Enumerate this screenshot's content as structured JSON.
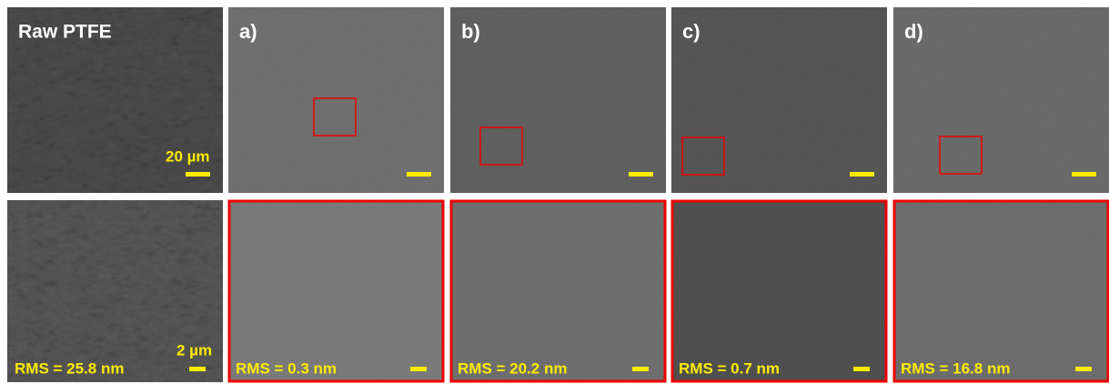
{
  "panels": [
    {
      "label": "Raw PTFE",
      "scale_top": "20 µm",
      "scale_bottom": "2 µm",
      "rms": "RMS = 25.8 nm"
    },
    {
      "label": "a)",
      "rms": "RMS = 0.3 nm"
    },
    {
      "label": "b)",
      "rms": "RMS = 20.2 nm"
    },
    {
      "label": "c)",
      "rms": "RMS = 0.7 nm"
    },
    {
      "label": "d)",
      "rms": "RMS = 16.8 nm"
    }
  ]
}
